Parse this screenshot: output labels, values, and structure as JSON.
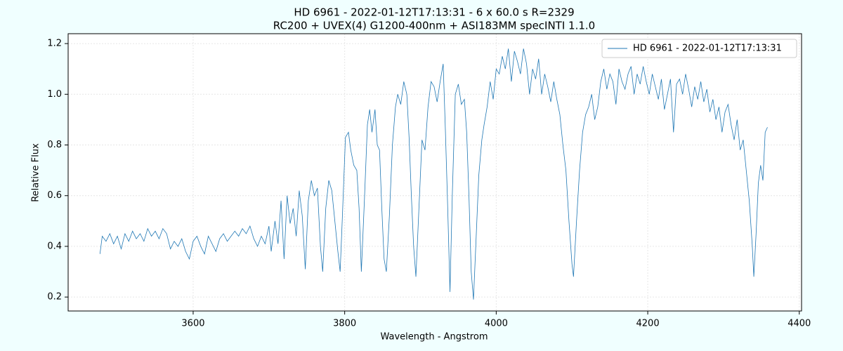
{
  "chart_data": {
    "type": "line",
    "title": "HD 6961 - 2022-01-12T17:13:31 - 6 x 60.0 s  R=2329",
    "subtitle": "RC200 + UVEX(4) G1200-400nm + ASI183MM   specINTI 1.1.0",
    "x_label": "Wavelength - Angstrom",
    "y_label": "Relative Flux",
    "xlim": [
      3435,
      4403
    ],
    "ylim": [
      0.145,
      1.239
    ],
    "xticks": [
      3600,
      3800,
      4000,
      4200,
      4400
    ],
    "yticks": [
      0.2,
      0.4,
      0.6,
      0.8,
      {
        "value": 1,
        "label": "1.0"
      },
      1.2
    ],
    "grid": true,
    "legend": "upper right",
    "x": [
      3477,
      3480,
      3485,
      3490,
      3495,
      3500,
      3505,
      3510,
      3515,
      3520,
      3525,
      3530,
      3535,
      3540,
      3545,
      3550,
      3555,
      3560,
      3565,
      3570,
      3575,
      3580,
      3585,
      3590,
      3595,
      3600,
      3605,
      3610,
      3615,
      3620,
      3625,
      3630,
      3635,
      3640,
      3645,
      3650,
      3655,
      3660,
      3665,
      3670,
      3675,
      3680,
      3685,
      3690,
      3695,
      3700,
      3703,
      3708,
      3712,
      3716,
      3720,
      3724,
      3728,
      3732,
      3736,
      3740,
      3744,
      3748,
      3752,
      3756,
      3760,
      3764,
      3768,
      3771,
      3775,
      3779,
      3783,
      3787,
      3791,
      3794,
      3797,
      3801,
      3805,
      3808,
      3812,
      3816,
      3819,
      3822,
      3826,
      3830,
      3833,
      3836,
      3840,
      3843,
      3846,
      3849,
      3852,
      3855,
      3859,
      3863,
      3867,
      3870,
      3874,
      3878,
      3882,
      3885,
      3888,
      3891,
      3894,
      3898,
      3902,
      3906,
      3910,
      3914,
      3918,
      3922,
      3926,
      3930,
      3933,
      3936,
      3939,
      3942,
      3946,
      3950,
      3954,
      3958,
      3961,
      3964,
      3967,
      3970,
      3973,
      3977,
      3981,
      3984,
      3988,
      3992,
      3996,
      4000,
      4004,
      4008,
      4012,
      4016,
      4020,
      4024,
      4028,
      4032,
      4036,
      4040,
      4044,
      4048,
      4052,
      4056,
      4060,
      4064,
      4068,
      4072,
      4076,
      4080,
      4084,
      4088,
      4092,
      4096,
      4100,
      4102,
      4106,
      4110,
      4114,
      4118,
      4122,
      4126,
      4130,
      4134,
      4138,
      4142,
      4146,
      4150,
      4154,
      4158,
      4162,
      4166,
      4170,
      4174,
      4178,
      4182,
      4186,
      4190,
      4194,
      4198,
      4202,
      4206,
      4210,
      4214,
      4218,
      4222,
      4226,
      4230,
      4234,
      4238,
      4242,
      4246,
      4250,
      4254,
      4258,
      4262,
      4266,
      4270,
      4274,
      4278,
      4282,
      4286,
      4290,
      4294,
      4298,
      4302,
      4306,
      4310,
      4314,
      4318,
      4322,
      4326,
      4330,
      4334,
      4338,
      4340,
      4343,
      4346,
      4349,
      4352,
      4355,
      4358
    ],
    "series": [
      {
        "name": "HD 6961 - 2022-01-12T17:13:31",
        "color": "#1f77b4",
        "values": [
          0.37,
          0.44,
          0.42,
          0.45,
          0.41,
          0.44,
          0.39,
          0.45,
          0.42,
          0.46,
          0.43,
          0.45,
          0.42,
          0.47,
          0.44,
          0.46,
          0.43,
          0.47,
          0.45,
          0.39,
          0.42,
          0.4,
          0.43,
          0.38,
          0.35,
          0.42,
          0.44,
          0.4,
          0.37,
          0.44,
          0.41,
          0.38,
          0.43,
          0.45,
          0.42,
          0.44,
          0.46,
          0.44,
          0.47,
          0.45,
          0.48,
          0.43,
          0.4,
          0.44,
          0.41,
          0.48,
          0.38,
          0.5,
          0.41,
          0.58,
          0.35,
          0.6,
          0.49,
          0.55,
          0.44,
          0.62,
          0.52,
          0.31,
          0.58,
          0.66,
          0.6,
          0.63,
          0.4,
          0.3,
          0.55,
          0.66,
          0.62,
          0.5,
          0.38,
          0.3,
          0.52,
          0.83,
          0.85,
          0.78,
          0.72,
          0.7,
          0.55,
          0.3,
          0.58,
          0.88,
          0.94,
          0.85,
          0.94,
          0.8,
          0.78,
          0.55,
          0.35,
          0.3,
          0.52,
          0.8,
          0.95,
          1.0,
          0.96,
          1.05,
          1.0,
          0.83,
          0.6,
          0.4,
          0.28,
          0.55,
          0.82,
          0.78,
          0.95,
          1.05,
          1.03,
          0.97,
          1.05,
          1.12,
          0.85,
          0.55,
          0.22,
          0.6,
          1.0,
          1.04,
          0.96,
          0.98,
          0.85,
          0.6,
          0.3,
          0.19,
          0.4,
          0.68,
          0.82,
          0.88,
          0.95,
          1.05,
          0.98,
          1.1,
          1.08,
          1.15,
          1.1,
          1.18,
          1.05,
          1.17,
          1.13,
          1.08,
          1.18,
          1.12,
          1.0,
          1.1,
          1.06,
          1.14,
          1.0,
          1.08,
          1.03,
          0.97,
          1.05,
          0.98,
          0.92,
          0.8,
          0.7,
          0.5,
          0.33,
          0.28,
          0.5,
          0.7,
          0.85,
          0.92,
          0.95,
          1.0,
          0.9,
          0.95,
          1.05,
          1.1,
          1.02,
          1.08,
          1.05,
          0.96,
          1.1,
          1.05,
          1.02,
          1.08,
          1.11,
          1.0,
          1.08,
          1.04,
          1.11,
          1.05,
          1.0,
          1.08,
          1.03,
          0.98,
          1.06,
          0.94,
          1.0,
          1.06,
          0.85,
          1.04,
          1.06,
          1.0,
          1.08,
          1.02,
          0.95,
          1.03,
          0.98,
          1.05,
          0.97,
          1.02,
          0.93,
          0.98,
          0.9,
          0.95,
          0.85,
          0.93,
          0.96,
          0.88,
          0.82,
          0.9,
          0.78,
          0.82,
          0.7,
          0.58,
          0.4,
          0.28,
          0.45,
          0.65,
          0.72,
          0.66,
          0.85,
          0.87
        ]
      }
    ]
  }
}
